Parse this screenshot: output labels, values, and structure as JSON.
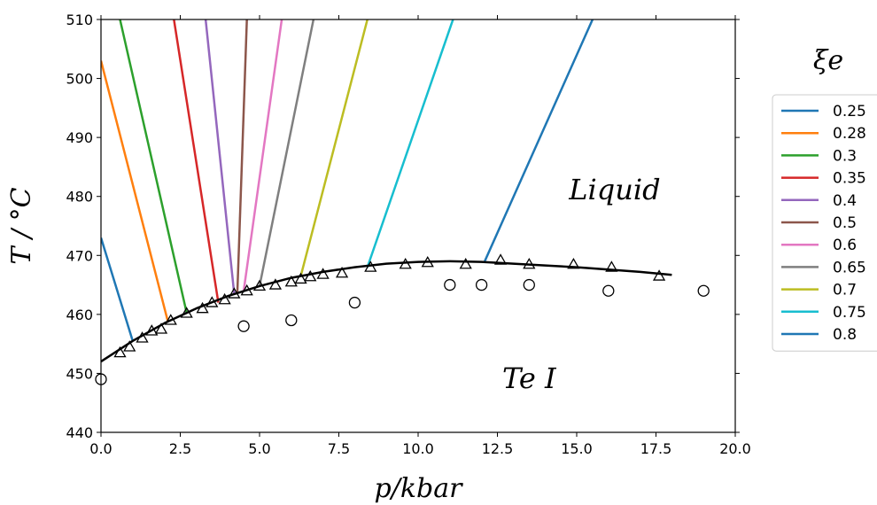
{
  "chart_data": {
    "type": "line",
    "xlabel": "p/kbar",
    "ylabel": "T / °C",
    "xlim": [
      0,
      20
    ],
    "ylim": [
      440,
      510
    ],
    "xticks": [
      "0.0",
      "2.5",
      "5.0",
      "7.5",
      "10.0",
      "12.5",
      "15.0",
      "17.5",
      "20.0"
    ],
    "yticks": [
      "440",
      "450",
      "460",
      "470",
      "480",
      "490",
      "500",
      "510"
    ],
    "annotations": [
      {
        "text": "Liquid",
        "x": 16.2,
        "y": 481
      },
      {
        "text": "Te I",
        "x": 13.5,
        "y": 449
      }
    ],
    "legend": {
      "title": "ξe",
      "placement": "right"
    },
    "melting_curve": {
      "x": [
        0,
        1,
        2,
        3,
        4,
        5,
        6,
        7,
        8,
        9,
        10,
        11,
        12,
        13,
        14,
        15,
        16,
        17,
        18
      ],
      "y": [
        452.0,
        455.5,
        458.5,
        461.0,
        463.1,
        464.8,
        466.2,
        467.2,
        468.0,
        468.6,
        468.9,
        469.0,
        468.9,
        468.6,
        468.3,
        468.0,
        467.6,
        467.2,
        466.7
      ]
    },
    "series": [
      {
        "name": "0.25",
        "color": "#1f77b4",
        "x": [
          0.0,
          1.0
        ],
        "y": [
          473.0,
          455.5
        ]
      },
      {
        "name": "0.28",
        "color": "#ff7f0e",
        "x": [
          0.0,
          2.1
        ],
        "y": [
          503.0,
          459.0
        ]
      },
      {
        "name": "0.3",
        "color": "#2ca02c",
        "x": [
          0.6,
          2.7
        ],
        "y": [
          510.0,
          460.3
        ]
      },
      {
        "name": "0.35",
        "color": "#d62728",
        "x": [
          2.3,
          3.7
        ],
        "y": [
          510.0,
          462.0
        ]
      },
      {
        "name": "0.4",
        "color": "#9467bd",
        "x": [
          3.3,
          4.2
        ],
        "y": [
          510.0,
          463.5
        ]
      },
      {
        "name": "0.5",
        "color": "#8c564b",
        "x": [
          4.6,
          4.3
        ],
        "y": [
          510.0,
          463.7
        ]
      },
      {
        "name": "0.6",
        "color": "#e377c2",
        "x": [
          5.7,
          4.5
        ],
        "y": [
          510.0,
          464.0
        ]
      },
      {
        "name": "0.65",
        "color": "#7f7f7f",
        "x": [
          6.7,
          5.0
        ],
        "y": [
          510.0,
          464.8
        ]
      },
      {
        "name": "0.7",
        "color": "#bcbd22",
        "x": [
          8.4,
          6.3
        ],
        "y": [
          510.0,
          466.5
        ]
      },
      {
        "name": "0.75",
        "color": "#17becf",
        "x": [
          11.1,
          8.4
        ],
        "y": [
          510.0,
          468.0
        ]
      },
      {
        "name": "0.8",
        "color": "#1f77b4",
        "x": [
          15.5,
          12.1
        ],
        "y": [
          510.0,
          469.0
        ]
      }
    ],
    "triangles": {
      "x": [
        0.6,
        0.9,
        1.3,
        1.6,
        1.9,
        2.2,
        2.7,
        3.2,
        3.5,
        3.9,
        4.2,
        4.6,
        5.0,
        5.5,
        6.0,
        6.3,
        6.6,
        7.0,
        7.6,
        8.5,
        9.6,
        10.3,
        11.5,
        12.6,
        13.5,
        14.9,
        16.1,
        17.6
      ],
      "y": [
        453.5,
        454.5,
        456.0,
        457.2,
        457.5,
        459.0,
        460.2,
        461.0,
        462.0,
        462.5,
        463.5,
        464.0,
        464.8,
        465.0,
        465.5,
        466.0,
        466.4,
        466.8,
        467.0,
        468.0,
        468.5,
        468.8,
        468.5,
        469.2,
        468.5,
        468.5,
        468.0,
        466.5
      ]
    },
    "circles": {
      "x": [
        0.0,
        4.5,
        6.0,
        8.0,
        11.0,
        12.0,
        13.5,
        16.0,
        19.0
      ],
      "y": [
        449,
        458,
        459,
        462,
        465,
        465,
        465,
        464,
        464
      ]
    }
  }
}
